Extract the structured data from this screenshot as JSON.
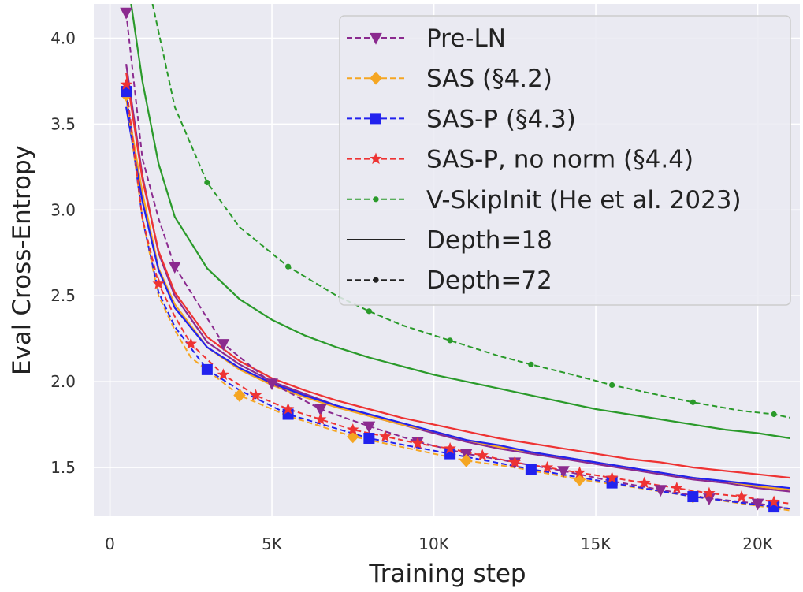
{
  "chart_data": {
    "type": "line",
    "title": "",
    "xlabel": "Training step",
    "ylabel": "Eval Cross-Entropy",
    "xlim": [
      -500,
      21300
    ],
    "ylim": [
      1.22,
      4.2
    ],
    "x_ticks": [
      0,
      5000,
      10000,
      15000,
      20000
    ],
    "x_tick_labels": [
      "0",
      "5K",
      "10K",
      "15K",
      "20K"
    ],
    "y_ticks": [
      1.5,
      2.0,
      2.5,
      3.0,
      3.5,
      4.0
    ],
    "y_tick_labels": [
      "1.5",
      "2.0",
      "2.5",
      "3.0",
      "3.5",
      "4.0"
    ],
    "grid": true,
    "legend_position": "top-right",
    "legend": [
      {
        "label": "Pre-LN",
        "color": "#8b2a8f",
        "marker": "triangle-down",
        "dashed": true
      },
      {
        "label": "SAS (§4.2)",
        "color": "#f5a623",
        "marker": "diamond",
        "dashed": true
      },
      {
        "label": "SAS-P (§4.3)",
        "color": "#2222ee",
        "marker": "square",
        "dashed": true
      },
      {
        "label": "SAS-P, no norm (§4.4)",
        "color": "#ee3333",
        "marker": "star",
        "dashed": true
      },
      {
        "label": "V-SkipInit (He et al. 2023)",
        "color": "#2a9a2a",
        "marker": "dot",
        "dashed": true
      },
      {
        "label": "Depth=18",
        "color": "#222222",
        "marker": "none",
        "dashed": false
      },
      {
        "label": "Depth=72",
        "color": "#222222",
        "marker": "dot",
        "dashed": true
      }
    ],
    "series": [
      {
        "name": "Pre-LN",
        "depth": 18,
        "color": "#8b2a8f",
        "dashed": false,
        "marker": "none",
        "x": [
          500,
          1000,
          1500,
          2000,
          3000,
          4000,
          5000,
          6000,
          7000,
          8000,
          9000,
          10000,
          11000,
          12000,
          13000,
          14000,
          15000,
          16000,
          17000,
          18000,
          19000,
          20000,
          21000
        ],
        "y": [
          3.85,
          3.2,
          2.75,
          2.5,
          2.23,
          2.1,
          2.0,
          1.93,
          1.86,
          1.8,
          1.75,
          1.7,
          1.65,
          1.61,
          1.58,
          1.55,
          1.52,
          1.49,
          1.46,
          1.43,
          1.41,
          1.38,
          1.36
        ]
      },
      {
        "name": "SAS (§4.2)",
        "depth": 18,
        "color": "#f5a623",
        "dashed": false,
        "marker": "none",
        "x": [
          500,
          1000,
          1500,
          2000,
          3000,
          4000,
          5000,
          6000,
          7000,
          8000,
          9000,
          10000,
          11000,
          12000,
          13000,
          14000,
          15000,
          16000,
          17000,
          18000,
          19000,
          20000,
          21000
        ],
        "y": [
          3.65,
          3.1,
          2.66,
          2.45,
          2.2,
          2.07,
          1.98,
          1.91,
          1.85,
          1.8,
          1.75,
          1.71,
          1.66,
          1.62,
          1.59,
          1.56,
          1.53,
          1.5,
          1.47,
          1.44,
          1.42,
          1.39,
          1.37
        ]
      },
      {
        "name": "SAS-P (§4.3)",
        "depth": 18,
        "color": "#2222ee",
        "dashed": false,
        "marker": "none",
        "x": [
          500,
          1000,
          1500,
          2000,
          3000,
          4000,
          5000,
          6000,
          7000,
          8000,
          9000,
          10000,
          11000,
          12000,
          13000,
          14000,
          15000,
          16000,
          17000,
          18000,
          19000,
          20000,
          21000
        ],
        "y": [
          3.6,
          3.05,
          2.65,
          2.43,
          2.2,
          2.08,
          1.99,
          1.92,
          1.86,
          1.81,
          1.76,
          1.71,
          1.66,
          1.63,
          1.59,
          1.56,
          1.53,
          1.5,
          1.47,
          1.44,
          1.42,
          1.4,
          1.38
        ]
      },
      {
        "name": "SAS-P, no norm (§4.4)",
        "depth": 18,
        "color": "#ee3333",
        "dashed": false,
        "marker": "none",
        "x": [
          500,
          1000,
          1500,
          2000,
          3000,
          4000,
          5000,
          6000,
          7000,
          8000,
          9000,
          10000,
          11000,
          12000,
          13000,
          14000,
          15000,
          16000,
          17000,
          18000,
          19000,
          20000,
          21000
        ],
        "y": [
          3.8,
          3.18,
          2.76,
          2.52,
          2.26,
          2.12,
          2.02,
          1.95,
          1.89,
          1.84,
          1.79,
          1.75,
          1.71,
          1.67,
          1.64,
          1.61,
          1.58,
          1.55,
          1.53,
          1.5,
          1.48,
          1.46,
          1.44
        ]
      },
      {
        "name": "V-SkipInit (He et al. 2023)",
        "depth": 18,
        "color": "#2a9a2a",
        "dashed": false,
        "marker": "none",
        "x": [
          500,
          1000,
          1500,
          2000,
          3000,
          4000,
          5000,
          6000,
          7000,
          8000,
          9000,
          10000,
          11000,
          12000,
          13000,
          14000,
          15000,
          16000,
          17000,
          18000,
          19000,
          20000,
          21000
        ],
        "y": [
          4.4,
          3.75,
          3.27,
          2.96,
          2.66,
          2.48,
          2.36,
          2.27,
          2.2,
          2.14,
          2.09,
          2.04,
          2.0,
          1.96,
          1.92,
          1.88,
          1.84,
          1.81,
          1.78,
          1.75,
          1.72,
          1.7,
          1.67
        ]
      },
      {
        "name": "Pre-LN",
        "depth": 72,
        "color": "#8b2a8f",
        "dashed": true,
        "marker": "triangle-down",
        "x": [
          500,
          1000,
          1500,
          2000,
          3500,
          5000,
          6500,
          8000,
          9500,
          11000,
          12500,
          14000,
          15500,
          17000,
          18500,
          20000,
          21000
        ],
        "y": [
          4.15,
          3.3,
          2.95,
          2.67,
          2.22,
          1.99,
          1.84,
          1.74,
          1.65,
          1.58,
          1.53,
          1.48,
          1.42,
          1.37,
          1.32,
          1.29,
          1.26
        ]
      },
      {
        "name": "SAS (§4.2)",
        "depth": 72,
        "color": "#f5a623",
        "dashed": true,
        "marker": "diamond",
        "x": [
          500,
          1000,
          1500,
          2000,
          2500,
          4000,
          5500,
          7500,
          9000,
          11000,
          12500,
          14500,
          16000,
          18000,
          19500,
          21000
        ],
        "y": [
          3.67,
          2.95,
          2.5,
          2.3,
          2.14,
          1.92,
          1.8,
          1.68,
          1.62,
          1.54,
          1.5,
          1.43,
          1.39,
          1.33,
          1.29,
          1.25
        ]
      },
      {
        "name": "SAS-P (§4.3)",
        "depth": 72,
        "color": "#2222ee",
        "dashed": true,
        "marker": "square",
        "x": [
          500,
          1000,
          1500,
          2000,
          3000,
          4000,
          5500,
          8000,
          10500,
          13000,
          15500,
          18000,
          20500,
          21000
        ],
        "y": [
          3.69,
          2.95,
          2.52,
          2.32,
          2.07,
          1.95,
          1.81,
          1.67,
          1.58,
          1.49,
          1.41,
          1.33,
          1.27,
          1.26
        ]
      },
      {
        "name": "SAS-P, no norm (§4.4)",
        "depth": 72,
        "color": "#ee3333",
        "dashed": true,
        "marker": "star",
        "x": [
          500,
          1000,
          1500,
          2000,
          2500,
          3500,
          4500,
          5500,
          6500,
          7500,
          8500,
          9500,
          10500,
          11500,
          12500,
          13500,
          14500,
          15500,
          16500,
          17500,
          18500,
          19500,
          20500,
          21000
        ],
        "y": [
          3.73,
          2.95,
          2.57,
          2.38,
          2.22,
          2.04,
          1.92,
          1.84,
          1.78,
          1.72,
          1.68,
          1.64,
          1.61,
          1.57,
          1.53,
          1.5,
          1.47,
          1.44,
          1.41,
          1.38,
          1.35,
          1.33,
          1.3,
          1.29
        ]
      },
      {
        "name": "V-SkipInit (He et al. 2023)",
        "depth": 72,
        "color": "#2a9a2a",
        "dashed": true,
        "marker": "dot",
        "x": [
          1200,
          2000,
          3000,
          4000,
          5500,
          7000,
          8000,
          9000,
          10500,
          12000,
          13000,
          14500,
          15500,
          17000,
          18000,
          19500,
          20500,
          21000
        ],
        "y": [
          4.3,
          3.6,
          3.16,
          2.9,
          2.67,
          2.5,
          2.41,
          2.33,
          2.24,
          2.15,
          2.1,
          2.03,
          1.98,
          1.92,
          1.88,
          1.83,
          1.81,
          1.79
        ]
      }
    ],
    "marked_points": {
      "Pre-LN": [
        500,
        2000,
        3500,
        5000,
        6500,
        8000,
        9500,
        11000,
        12500,
        14000,
        15500,
        17000,
        18500,
        20000
      ],
      "SAS (§4.2)": [
        500,
        4000,
        7500,
        11000,
        14500,
        18000
      ],
      "SAS-P (§4.3)": [
        500,
        3000,
        5500,
        8000,
        10500,
        13000,
        15500,
        18000,
        20500
      ],
      "SAS-P, no norm (§4.4)": [
        500,
        1500,
        2500,
        3500,
        4500,
        5500,
        6500,
        7500,
        8500,
        9500,
        10500,
        11500,
        12500,
        13500,
        14500,
        15500,
        16500,
        17500,
        18500,
        19500,
        20500
      ],
      "V-SkipInit (He et al. 2023)": [
        3000,
        5500,
        8000,
        10500,
        13000,
        15500,
        18000,
        20500
      ]
    }
  }
}
